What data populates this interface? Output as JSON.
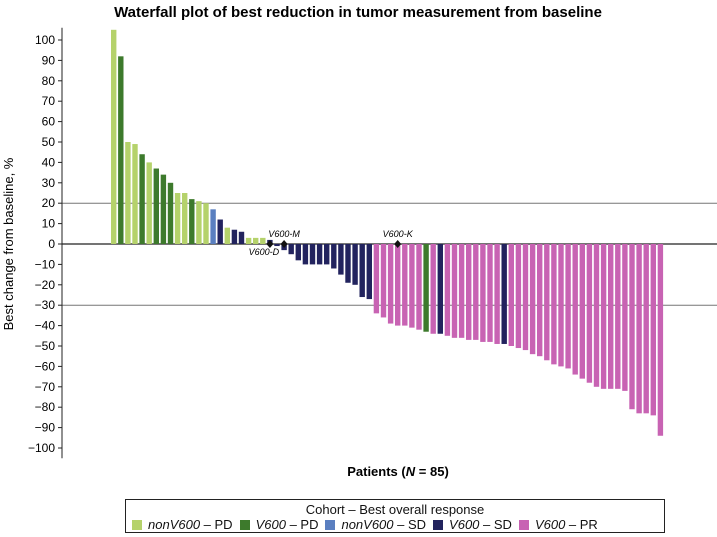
{
  "chart_data": {
    "type": "bar",
    "title": "Waterfall plot of best reduction in tumor measurement from baseline",
    "xlabel": "Patients",
    "xlabel_n": "N",
    "xlabel_count": "= 85",
    "ylabel": "Best change from baseline, %",
    "ylim": [
      -105,
      105
    ],
    "yticks": [
      100,
      90,
      80,
      70,
      60,
      50,
      40,
      30,
      20,
      10,
      0,
      -10,
      -20,
      -30,
      -40,
      -50,
      -60,
      -70,
      -80,
      -90,
      -100
    ],
    "reference_lines": [
      20,
      0,
      -30
    ],
    "colors": {
      "nonV600_PD": "#b5d26b",
      "V600_PD": "#3d7a2c",
      "nonV600_SD": "#5a7fc0",
      "V600_SD": "#22235e",
      "V600_PR": "#c863b3"
    },
    "bars": [
      {
        "value": 105,
        "group": "nonV600_PD"
      },
      {
        "value": 92,
        "group": "V600_PD"
      },
      {
        "value": 50,
        "group": "nonV600_PD"
      },
      {
        "value": 49,
        "group": "nonV600_PD"
      },
      {
        "value": 44,
        "group": "V600_PD"
      },
      {
        "value": 40,
        "group": "nonV600_PD"
      },
      {
        "value": 37,
        "group": "V600_PD"
      },
      {
        "value": 34,
        "group": "V600_PD"
      },
      {
        "value": 30,
        "group": "V600_PD"
      },
      {
        "value": 25,
        "group": "nonV600_PD"
      },
      {
        "value": 25,
        "group": "nonV600_PD"
      },
      {
        "value": 22,
        "group": "V600_PD"
      },
      {
        "value": 21,
        "group": "nonV600_PD"
      },
      {
        "value": 20,
        "group": "nonV600_PD"
      },
      {
        "value": 17,
        "group": "nonV600_SD"
      },
      {
        "value": 12,
        "group": "V600_SD"
      },
      {
        "value": 8,
        "group": "nonV600_PD"
      },
      {
        "value": 7,
        "group": "V600_SD"
      },
      {
        "value": 6,
        "group": "V600_SD"
      },
      {
        "value": 3,
        "group": "nonV600_PD"
      },
      {
        "value": 3,
        "group": "nonV600_PD"
      },
      {
        "value": 3,
        "group": "nonV600_PD"
      },
      {
        "value": 2,
        "group": "V600_SD"
      },
      {
        "value": -1,
        "group": "V600_SD"
      },
      {
        "value": -3,
        "group": "V600_SD"
      },
      {
        "value": -5,
        "group": "V600_SD"
      },
      {
        "value": -8,
        "group": "V600_SD"
      },
      {
        "value": -10,
        "group": "V600_SD"
      },
      {
        "value": -10,
        "group": "V600_SD"
      },
      {
        "value": -10,
        "group": "V600_SD"
      },
      {
        "value": -10,
        "group": "V600_SD"
      },
      {
        "value": -12,
        "group": "V600_SD"
      },
      {
        "value": -15,
        "group": "V600_SD"
      },
      {
        "value": -19,
        "group": "V600_SD"
      },
      {
        "value": -20,
        "group": "V600_SD"
      },
      {
        "value": -26,
        "group": "V600_SD"
      },
      {
        "value": -27,
        "group": "V600_SD"
      },
      {
        "value": -34,
        "group": "V600_PR"
      },
      {
        "value": -36,
        "group": "V600_PR"
      },
      {
        "value": -39,
        "group": "V600_PR"
      },
      {
        "value": -40,
        "group": "V600_PR"
      },
      {
        "value": -40,
        "group": "V600_PR"
      },
      {
        "value": -41,
        "group": "V600_PR"
      },
      {
        "value": -42,
        "group": "V600_PR"
      },
      {
        "value": -43,
        "group": "V600_PD"
      },
      {
        "value": -44,
        "group": "V600_PR"
      },
      {
        "value": -44,
        "group": "V600_SD"
      },
      {
        "value": -45,
        "group": "V600_PR"
      },
      {
        "value": -46,
        "group": "V600_PR"
      },
      {
        "value": -46,
        "group": "V600_PR"
      },
      {
        "value": -47,
        "group": "V600_PR"
      },
      {
        "value": -47,
        "group": "V600_PR"
      },
      {
        "value": -48,
        "group": "V600_PR"
      },
      {
        "value": -48,
        "group": "V600_PR"
      },
      {
        "value": -49,
        "group": "V600_PR"
      },
      {
        "value": -49,
        "group": "V600_SD"
      },
      {
        "value": -50,
        "group": "V600_PR"
      },
      {
        "value": -51,
        "group": "V600_PR"
      },
      {
        "value": -52,
        "group": "V600_PR"
      },
      {
        "value": -54,
        "group": "V600_PR"
      },
      {
        "value": -55,
        "group": "V600_PR"
      },
      {
        "value": -57,
        "group": "V600_PR"
      },
      {
        "value": -59,
        "group": "V600_PR"
      },
      {
        "value": -60,
        "group": "V600_PR"
      },
      {
        "value": -61,
        "group": "V600_PR"
      },
      {
        "value": -64,
        "group": "V600_PR"
      },
      {
        "value": -66,
        "group": "V600_PR"
      },
      {
        "value": -68,
        "group": "V600_PR"
      },
      {
        "value": -70,
        "group": "V600_PR"
      },
      {
        "value": -71,
        "group": "V600_PR"
      },
      {
        "value": -71,
        "group": "V600_PR"
      },
      {
        "value": -71,
        "group": "V600_PR"
      },
      {
        "value": -72,
        "group": "V600_PR"
      },
      {
        "value": -81,
        "group": "V600_PR"
      },
      {
        "value": -83,
        "group": "V600_PR"
      },
      {
        "value": -83,
        "group": "V600_PR"
      },
      {
        "value": -84,
        "group": "V600_PR"
      },
      {
        "value": -94,
        "group": "V600_PR"
      }
    ],
    "annotations": [
      {
        "label": "V600-D",
        "bar_index": 22
      },
      {
        "label": "V600-M",
        "bar_index": 24
      },
      {
        "label": "V600-K",
        "bar_index": 40
      }
    ],
    "legend": {
      "title": "Cohort – Best overall response",
      "entries": [
        {
          "group": "nonV600_PD",
          "cohort": "nonV600",
          "response": "– PD"
        },
        {
          "group": "V600_PD",
          "cohort": "V600",
          "response": "– PD"
        },
        {
          "group": "nonV600_SD",
          "cohort": "nonV600",
          "response": "– SD"
        },
        {
          "group": "V600_SD",
          "cohort": "V600",
          "response": "– SD"
        },
        {
          "group": "V600_PR",
          "cohort": "V600",
          "response": "– PR"
        }
      ]
    }
  }
}
